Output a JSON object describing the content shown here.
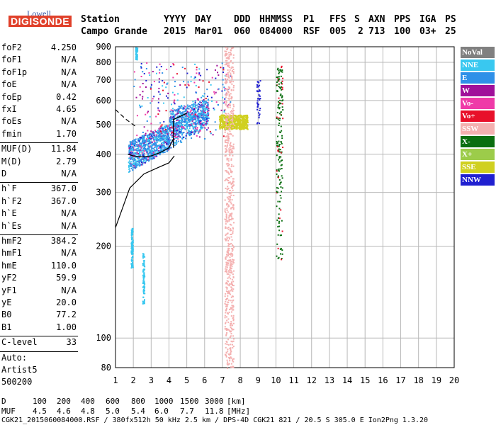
{
  "logo": {
    "top": "Lowell",
    "bottom": "DIGISONDE"
  },
  "header": {
    "labels": [
      "Station",
      "YYYY",
      "DAY",
      "DDD",
      "HHMMSS",
      "P1",
      "FFS",
      "S",
      "AXN",
      "PPS",
      "IGA",
      "PS"
    ],
    "values": [
      "Campo Grande",
      "2015",
      "Mar01",
      "060",
      "084000",
      "RSF",
      "005",
      "2",
      "713",
      "100",
      "03+",
      "25"
    ]
  },
  "params": {
    "group1": [
      {
        "name": "foF2",
        "value": "4.250"
      },
      {
        "name": "foF1",
        "value": "N/A"
      },
      {
        "name": "foF1p",
        "value": "N/A"
      },
      {
        "name": "foE",
        "value": "N/A"
      },
      {
        "name": "foEp",
        "value": "0.42"
      },
      {
        "name": "fxI",
        "value": "4.65"
      },
      {
        "name": "foEs",
        "value": "N/A"
      },
      {
        "name": "fmin",
        "value": "1.70"
      }
    ],
    "group2": [
      {
        "name": "MUF(D)",
        "value": "11.84"
      },
      {
        "name": "M(D)",
        "value": "2.79"
      },
      {
        "name": "D",
        "value": "N/A"
      }
    ],
    "group3": [
      {
        "name": "h`F",
        "value": "367.0"
      },
      {
        "name": "h`F2",
        "value": "367.0"
      },
      {
        "name": "h`E",
        "value": "N/A"
      },
      {
        "name": "h`Es",
        "value": "N/A"
      }
    ],
    "group4": [
      {
        "name": "hmF2",
        "value": "384.2"
      },
      {
        "name": "hmF1",
        "value": "N/A"
      },
      {
        "name": "hmE",
        "value": "110.0"
      },
      {
        "name": "yF2",
        "value": "59.9"
      },
      {
        "name": "yF1",
        "value": "N/A"
      },
      {
        "name": "yE",
        "value": "20.0"
      },
      {
        "name": "B0",
        "value": "77.2"
      },
      {
        "name": "B1",
        "value": "1.00"
      }
    ],
    "clevel": {
      "name": "C-level",
      "value": "33"
    },
    "auto": [
      "Auto:",
      "Artist5",
      "500200"
    ]
  },
  "legend": [
    {
      "label": "NoVal",
      "color": "#808080"
    },
    {
      "label": "NNE",
      "color": "#39c8f0"
    },
    {
      "label": "E",
      "color": "#2f90e8"
    },
    {
      "label": "W",
      "color": "#a0109a"
    },
    {
      "label": "Vo-",
      "color": "#ef3aa8"
    },
    {
      "label": "Vo+",
      "color": "#e8102a"
    },
    {
      "label": "SSW",
      "color": "#f4b0b0"
    },
    {
      "label": "X-",
      "color": "#0a6e10"
    },
    {
      "label": "X+",
      "color": "#9ccc4a"
    },
    {
      "label": "SSE",
      "color": "#d0d020"
    },
    {
      "label": "NNW",
      "color": "#2020d0"
    }
  ],
  "chart_data": {
    "type": "scatter",
    "xlabel": "",
    "ylabel": "",
    "xlim": [
      1,
      20
    ],
    "ylim": [
      80,
      900
    ],
    "x_ticks": [
      1,
      2,
      3,
      4,
      5,
      6,
      7,
      8,
      9,
      10,
      11,
      12,
      13,
      14,
      15,
      16,
      17,
      18,
      19,
      20
    ],
    "y_ticks": [
      80,
      100,
      200,
      300,
      400,
      500,
      600,
      700,
      800,
      900
    ],
    "y_scale": "log",
    "grid": true,
    "profile_curve": {
      "x": [
        1.7,
        2.0,
        2.5,
        3.0,
        3.5,
        4.0,
        4.25
      ],
      "y": [
        400,
        395,
        392,
        395,
        405,
        420,
        450
      ]
    },
    "echo_clusters": [
      {
        "label": "E",
        "x_range": [
          1.7,
          6.2
        ],
        "y_range": [
          370,
          600
        ]
      },
      {
        "label": "SSE",
        "x_range": [
          6.8,
          8.4
        ],
        "y_range": [
          480,
          540
        ]
      },
      {
        "label": "SSW",
        "x_range": [
          7.1,
          7.6
        ],
        "y_range": [
          80,
          900
        ]
      },
      {
        "label": "X-",
        "x_range": [
          10.0,
          10.4
        ],
        "y_range": [
          180,
          780
        ]
      }
    ]
  },
  "footer": {
    "row1_label": "D",
    "row1_values": [
      "100",
      "200",
      "400",
      "600",
      "800",
      "1000",
      "1500",
      "3000",
      "[km]"
    ],
    "row2_label": "MUF",
    "row2_values": [
      "4.5",
      "4.6",
      "4.8",
      "5.0",
      "5.4",
      "6.0",
      "7.7",
      "11.8",
      "[MHz]"
    ],
    "file_line": "CGK21_2015060084000.RSF / 380fx512h 50 kHz 2.5 km / DPS-4D CGK21 821 / 20.5 S 305.0 E Ion2Png 1.3.20"
  }
}
